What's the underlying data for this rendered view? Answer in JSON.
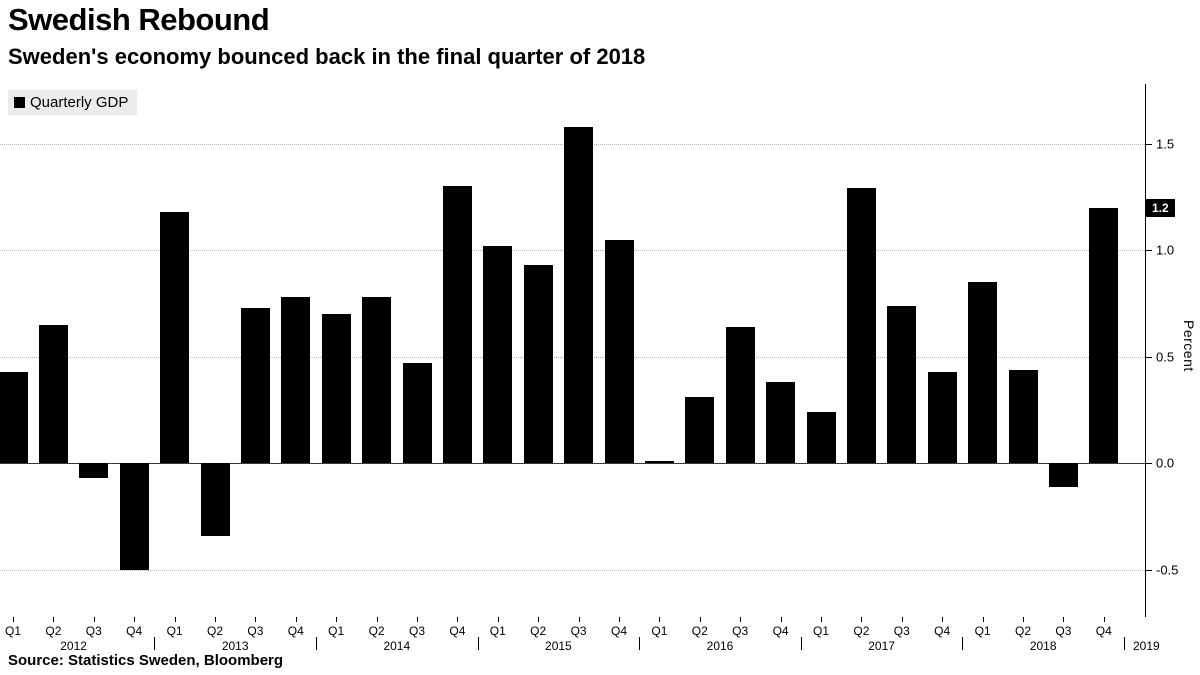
{
  "header": {
    "title": "Swedish Rebound",
    "subtitle": "Sweden's economy bounced back in the final quarter of 2018"
  },
  "legend": {
    "label": "Quarterly GDP"
  },
  "source": "Source: Statistics Sweden, Bloomberg",
  "chart_data": {
    "type": "bar",
    "title": "Swedish Rebound",
    "subtitle": "Sweden's economy bounced back in the final quarter of 2018",
    "series_name": "Quarterly GDP",
    "ylabel": "Percent",
    "ylim": [
      -0.72,
      1.78
    ],
    "yticks": [
      -0.5,
      0,
      0.5,
      1,
      1.5
    ],
    "ytick_labels": [
      "-0.5",
      "0.0",
      "0.5",
      "1.0",
      "1.5"
    ],
    "grid": true,
    "legend_position": "top-left",
    "bar_color": "#000000",
    "axis_end_year": "2019",
    "categories": [
      "Q1 2012",
      "Q2 2012",
      "Q3 2012",
      "Q4 2012",
      "Q1 2013",
      "Q2 2013",
      "Q3 2013",
      "Q4 2013",
      "Q1 2014",
      "Q2 2014",
      "Q3 2014",
      "Q4 2014",
      "Q1 2015",
      "Q2 2015",
      "Q3 2015",
      "Q4 2015",
      "Q1 2016",
      "Q2 2016",
      "Q3 2016",
      "Q4 2016",
      "Q1 2017",
      "Q2 2017",
      "Q3 2017",
      "Q4 2017",
      "Q1 2018",
      "Q2 2018",
      "Q3 2018",
      "Q4 2018"
    ],
    "values": [
      0.43,
      0.65,
      -0.07,
      -0.5,
      1.18,
      -0.34,
      0.73,
      0.78,
      0.7,
      0.78,
      0.47,
      1.3,
      1.02,
      0.93,
      1.58,
      1.05,
      0.01,
      0.31,
      0.64,
      0.38,
      0.24,
      1.29,
      0.74,
      0.43,
      0.85,
      0.44,
      -0.11,
      1.2
    ],
    "annotation": {
      "label": "1.2",
      "value": 1.2
    }
  }
}
